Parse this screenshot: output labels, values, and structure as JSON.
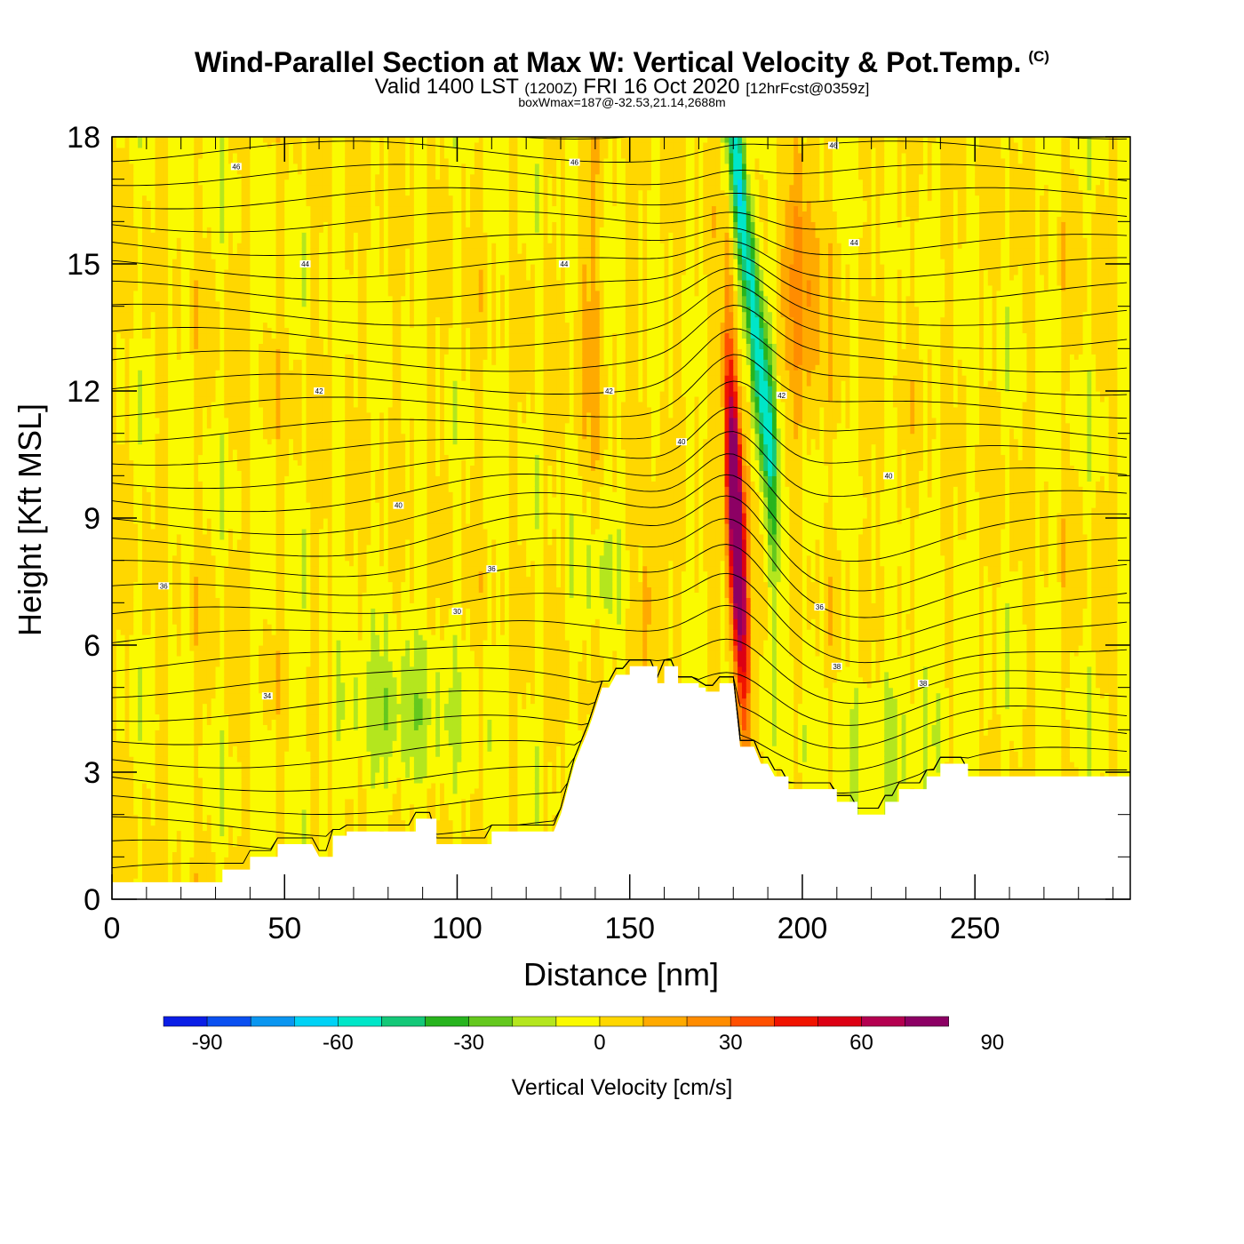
{
  "title": {
    "main": "Wind-Parallel Section at Max W: Vertical Velocity & Pot.Temp.",
    "copyright": "(C)",
    "valid_prefix": "Valid 1400 LST",
    "valid_utc": "(1200Z)",
    "valid_date": "FRI 16 Oct 2020",
    "forecast": "[12hrFcst@0359z]",
    "box_wmax": "boxWmax=187@-32.53,21.14,2688m"
  },
  "chart_data": {
    "type": "heatmap",
    "xlabel": "Distance [nm]",
    "ylabel": "Height [Kft MSL]",
    "xlim": [
      0,
      295
    ],
    "ylim": [
      0,
      18
    ],
    "x_ticks": [
      0,
      50,
      100,
      150,
      200,
      250
    ],
    "y_ticks": [
      0,
      3,
      6,
      9,
      12,
      15,
      18
    ],
    "colorbar": {
      "label": "Vertical Velocity [cm/s]",
      "ticks": [
        -90,
        -60,
        -30,
        0,
        30,
        60,
        90
      ],
      "bins": [
        -100,
        -90,
        -80,
        -70,
        -60,
        -50,
        -40,
        -30,
        -20,
        -10,
        0,
        10,
        20,
        30,
        40,
        50,
        60,
        70,
        80,
        90,
        100,
        110
      ],
      "colors": [
        "#0a1ee6",
        "#0a50f0",
        "#0a96f0",
        "#00d2f5",
        "#00e6c8",
        "#14c878",
        "#28b41e",
        "#64c81e",
        "#b4e61e",
        "#fafa00",
        "#ffd700",
        "#ffaa00",
        "#ff8c00",
        "#ff5000",
        "#f01400",
        "#dc0014",
        "#b40050",
        "#8c0064"
      ]
    },
    "terrain": {
      "x": [
        0,
        32,
        32,
        40,
        40,
        48,
        48,
        58,
        60,
        64,
        64,
        68,
        68,
        88,
        88,
        94,
        94,
        110,
        110,
        128,
        130,
        132,
        134,
        136,
        138,
        140,
        142,
        144,
        146,
        150,
        150,
        158,
        158,
        160,
        160,
        164,
        164,
        170,
        170,
        172,
        172,
        176,
        176,
        180,
        182,
        186,
        188,
        190,
        192,
        196,
        196,
        200,
        200,
        210,
        210,
        216,
        216,
        224,
        224,
        228,
        228,
        236,
        236,
        240,
        240,
        244,
        244,
        248,
        248,
        274,
        274,
        295
      ],
      "height": [
        0.4,
        0.4,
        0.7,
        0.7,
        1.0,
        1.0,
        1.3,
        1.3,
        1.0,
        1.0,
        1.5,
        1.5,
        1.6,
        1.6,
        1.9,
        1.9,
        1.3,
        1.3,
        1.6,
        1.6,
        2.0,
        2.6,
        3.2,
        3.6,
        4.0,
        4.5,
        5.0,
        5.0,
        5.3,
        5.3,
        5.5,
        5.5,
        5.1,
        5.1,
        5.5,
        5.5,
        5.1,
        5.1,
        5.0,
        5.0,
        4.9,
        4.9,
        5.1,
        5.1,
        3.6,
        3.6,
        3.2,
        3.2,
        2.9,
        2.9,
        2.6,
        2.6,
        2.6,
        2.6,
        2.3,
        2.3,
        2.0,
        2.0,
        2.3,
        2.3,
        2.6,
        2.6,
        2.9,
        2.9,
        3.2,
        3.2,
        3.2,
        3.2,
        2.9,
        2.9,
        2.9,
        2.9
      ]
    },
    "updraft_core": {
      "x": 181,
      "height_range": [
        5.5,
        12
      ],
      "max_value": 110
    },
    "downdraft_core": {
      "x": 184,
      "height_range": [
        12,
        18
      ],
      "min_value": -60
    },
    "theta_contours": [
      {
        "label": "30",
        "x": 100,
        "height": 6.8
      },
      {
        "label": "34",
        "x": 45,
        "height": 4.8
      },
      {
        "label": "36",
        "x": 15,
        "height": 7.4
      },
      {
        "label": "36",
        "x": 110,
        "height": 7.8
      },
      {
        "label": "36",
        "x": 205,
        "height": 6.9
      },
      {
        "label": "38",
        "x": 210,
        "height": 5.5
      },
      {
        "label": "38",
        "x": 235,
        "height": 5.1
      },
      {
        "label": "40",
        "x": 83,
        "height": 9.3
      },
      {
        "label": "40",
        "x": 165,
        "height": 10.8
      },
      {
        "label": "40",
        "x": 225,
        "height": 10.0
      },
      {
        "label": "42",
        "x": 60,
        "height": 12.0
      },
      {
        "label": "42",
        "x": 144,
        "height": 12.0
      },
      {
        "label": "42",
        "x": 194,
        "height": 11.9
      },
      {
        "label": "44",
        "x": 56,
        "height": 15.0
      },
      {
        "label": "44",
        "x": 131,
        "height": 15.0
      },
      {
        "label": "44",
        "x": 215,
        "height": 15.5
      },
      {
        "label": "46",
        "x": 36,
        "height": 17.3
      },
      {
        "label": "46",
        "x": 134,
        "height": 17.4
      },
      {
        "label": "46",
        "x": 209,
        "height": 17.8
      }
    ]
  }
}
